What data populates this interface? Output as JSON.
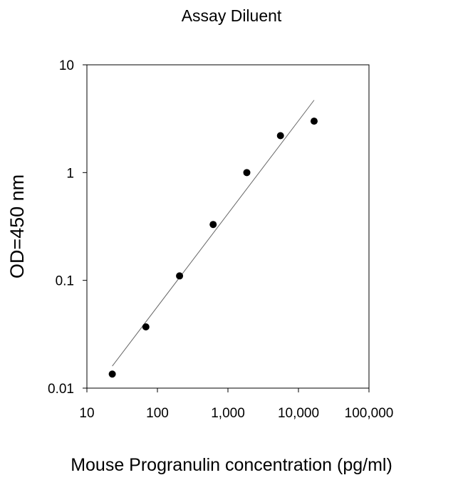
{
  "chart_data": {
    "type": "scatter",
    "title": "Assay Diluent",
    "xlabel": "Mouse Progranulin concentration (pg/ml)",
    "ylabel": "OD=450 nm",
    "xscale": "log",
    "yscale": "log",
    "xlim": [
      10,
      100000
    ],
    "ylim": [
      0.01,
      10
    ],
    "xticks": [
      {
        "value": 10,
        "label": "10"
      },
      {
        "value": 100,
        "label": "100"
      },
      {
        "value": 1000,
        "label": "1,000"
      },
      {
        "value": 10000,
        "label": "10,000"
      },
      {
        "value": 100000,
        "label": "100,000"
      }
    ],
    "yticks": [
      {
        "value": 0.01,
        "label": "0.01"
      },
      {
        "value": 0.1,
        "label": "0.1"
      },
      {
        "value": 1,
        "label": "1"
      },
      {
        "value": 10,
        "label": "10"
      }
    ],
    "grid": false,
    "series": [
      {
        "points": [
          {
            "x": 22.9,
            "y": 0.0135
          },
          {
            "x": 68.6,
            "y": 0.037
          },
          {
            "x": 206,
            "y": 0.11
          },
          {
            "x": 617,
            "y": 0.33
          },
          {
            "x": 1852,
            "y": 1.0
          },
          {
            "x": 5556,
            "y": 2.2
          },
          {
            "x": 16667,
            "y": 3.0
          }
        ]
      }
    ],
    "fit_line": {
      "x": [
        22.9,
        16667
      ],
      "y": [
        0.016,
        4.7
      ]
    },
    "colors": {
      "points": "#000000",
      "line": "#666666",
      "axes": "#000000"
    }
  }
}
